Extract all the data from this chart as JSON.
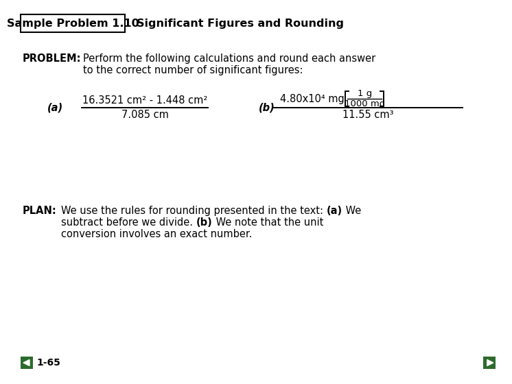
{
  "bg_color": "#ffffff",
  "title_box_text": "Sample Problem 1.10",
  "title_rest": "Significant Figures and Rounding",
  "problem_label": "PROBLEM:",
  "problem_text_line1": "Perform the following calculations and round each answer",
  "problem_text_line2": "to the correct number of significant figures:",
  "part_a_label": "(a)",
  "part_a_numerator": "16.3521 cm² - 1.448 cm²",
  "part_a_denominator": "7.085 cm",
  "part_b_label": "(b)",
  "part_b_main": "4.80x10⁴ mg",
  "part_b_frac_num": "1 g",
  "part_b_frac_den": "1000 mg",
  "part_b_denominator": "11.55 cm³",
  "plan_label": "PLAN:",
  "plan_line1_pre": "We use the rules for rounding presented in the text: ",
  "plan_line1_bold": "(a)",
  "plan_line1_post": " We",
  "plan_line2_pre": "subtract before we divide. ",
  "plan_line2_bold": "(b)",
  "plan_line2_post": " We note that the unit",
  "plan_line3": "conversion involves an exact number.",
  "page_number": "1-65",
  "nav_color": "#2d6b2d",
  "font_family": "DejaVu Sans",
  "fs_title": 11.5,
  "fs_body": 10.5,
  "fs_small": 9.5,
  "fs_page": 10.0
}
